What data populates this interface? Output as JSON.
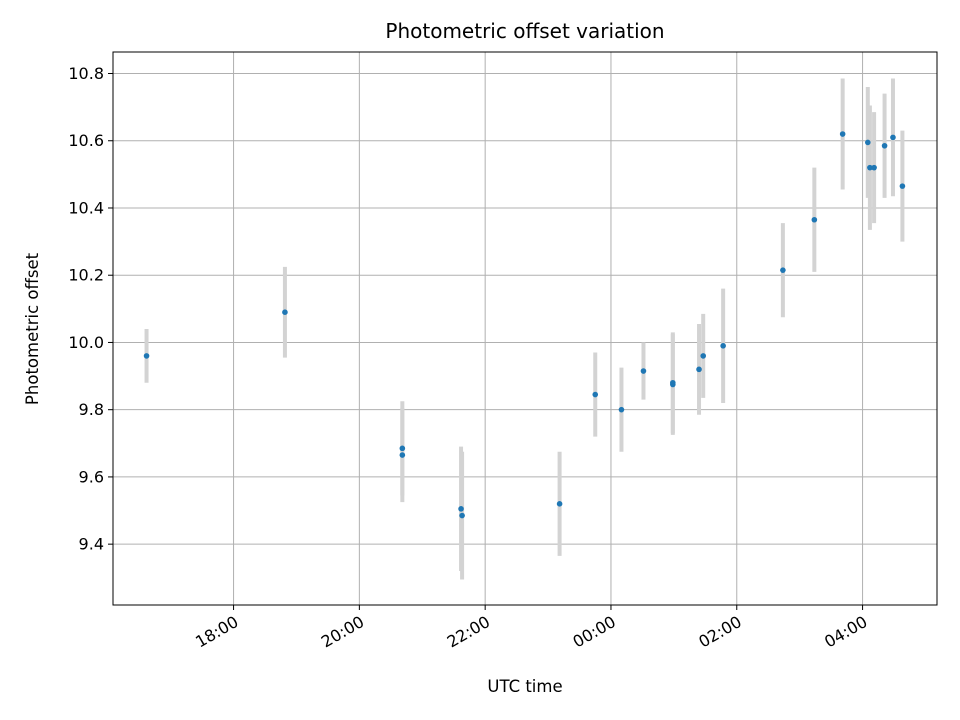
{
  "chart_data": {
    "type": "scatter",
    "title": "Photometric offset variation",
    "xlabel": "UTC time",
    "ylabel": "Photometric offset",
    "x_unit": "UTC time",
    "xlim": [
      "16:05",
      "05:11"
    ],
    "ylim": [
      9.219,
      10.864
    ],
    "x_ticks": [
      "18:00",
      "20:00",
      "22:00",
      "00:00",
      "02:00",
      "04:00"
    ],
    "y_ticks": [
      "9.4",
      "9.6",
      "9.8",
      "10.0",
      "10.2",
      "10.4",
      "10.6",
      "10.8"
    ],
    "grid": true,
    "legend": "none",
    "colors": {
      "points": "#1f77b4",
      "error_bars": "#d3d3d3",
      "grid": "#b0b0b0"
    },
    "series": [
      {
        "points": [
          {
            "x": "16:37",
            "y": 9.96,
            "err": 0.08
          },
          {
            "x": "18:49",
            "y": 10.09,
            "err": 0.135
          },
          {
            "x": "20:41",
            "y": 9.685,
            "err": 0.14
          },
          {
            "x": "20:41",
            "y": 9.665,
            "err": 0.14
          },
          {
            "x": "21:37",
            "y": 9.505,
            "err": 0.185
          },
          {
            "x": "21:38",
            "y": 9.485,
            "err": 0.19
          },
          {
            "x": "23:11",
            "y": 9.52,
            "err": 0.155
          },
          {
            "x": "23:45",
            "y": 9.845,
            "err": 0.125
          },
          {
            "x": "00:10",
            "y": 9.8,
            "err": 0.125
          },
          {
            "x": "00:31",
            "y": 9.915,
            "err": 0.085
          },
          {
            "x": "00:59",
            "y": 9.875,
            "err": 0.15
          },
          {
            "x": "00:59",
            "y": 9.88,
            "err": 0.15
          },
          {
            "x": "01:24",
            "y": 9.92,
            "err": 0.135
          },
          {
            "x": "01:28",
            "y": 9.96,
            "err": 0.125
          },
          {
            "x": "01:47",
            "y": 9.99,
            "err": 0.17
          },
          {
            "x": "02:44",
            "y": 10.215,
            "err": 0.14
          },
          {
            "x": "03:14",
            "y": 10.365,
            "err": 0.155
          },
          {
            "x": "03:41",
            "y": 10.62,
            "err": 0.165
          },
          {
            "x": "04:05",
            "y": 10.595,
            "err": 0.165
          },
          {
            "x": "04:07",
            "y": 10.52,
            "err": 0.185
          },
          {
            "x": "04:11",
            "y": 10.52,
            "err": 0.165
          },
          {
            "x": "04:21",
            "y": 10.585,
            "err": 0.155
          },
          {
            "x": "04:29",
            "y": 10.61,
            "err": 0.175
          },
          {
            "x": "04:38",
            "y": 10.465,
            "err": 0.165
          }
        ]
      }
    ]
  }
}
